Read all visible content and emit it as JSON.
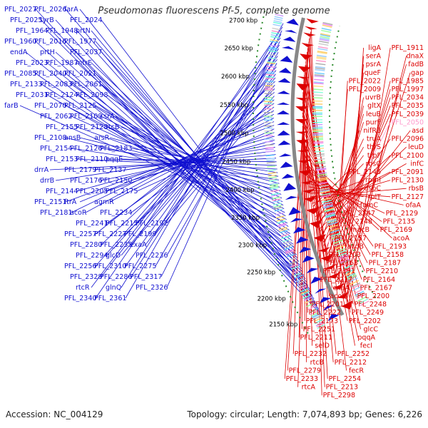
{
  "map": {
    "title": "Pseudomonas fluorescens Pf-5, complete genome",
    "accession_label": "Accession: NC_004129",
    "summary_label": "Topology: circular; Length: 7,074,893 bp; Genes: 6,226"
  },
  "colors": {
    "forward": "#1010d0",
    "reverse": "#dd0000",
    "highlight": "#ff99cc",
    "backbone": "#888888",
    "tick_dots": "#2a8a2a",
    "tick_label": "#000000"
  },
  "kbp_ticks": [
    "2150 kbp",
    "2200 kbp",
    "2250 kbp",
    "2300 kbp",
    "2350 kbp",
    "2400 kbp",
    "2450 kbp",
    "2500 kbp",
    "2550 kbp",
    "2600 kbp",
    "2650 kbp",
    "2700 kbp"
  ],
  "forward_labels": [
    "PFL_2027",
    "PFL_2026",
    "farA",
    "PFL_2025",
    "tyrB",
    "PFL_2024",
    "PFL_1964",
    "PFL_1948",
    "prtN",
    "PFL_1960",
    "PFL_2016",
    "PFL_1977",
    "endA",
    "prtH",
    "PFL_2037",
    "PFL_2023",
    "PFL_1987",
    "mtrE",
    "PFL_2085",
    "PFL_2040",
    "PFL_2021",
    "PFL_2133",
    "PFL_2083",
    "PFL_2061",
    "PFL_2031",
    "PFL_2124",
    "PFL_2098",
    "farB",
    "PFL_2070",
    "PFL_2125",
    "PFL_2062",
    "PFL_2109",
    "csrA",
    "PFL_2155",
    "PFL_2128",
    "rtcB",
    "PFL_2108",
    "ansB",
    "arsR",
    "PFL_2154",
    "PFL_2126",
    "PFL_2183",
    "PFL_2153",
    "PFL_2110",
    "pqqE",
    "drrA",
    "PFL_2179",
    "PFL_2137",
    "drrB",
    "PFL_2176",
    "PFL_2150",
    "PFL_2144",
    "PFL_2205",
    "PFL_2175",
    "PFL_2151",
    "ftrA",
    "agmR",
    "PFL_2181",
    "acoR",
    "PFL_2234",
    "PFL_2241",
    "PFL_2215",
    "PFL_2192",
    "PFL_2257",
    "PFL_2227",
    "PFL_2199",
    "PFL_2280",
    "PFL_2235",
    "exaA",
    "PFL_2294",
    "glcD",
    "PFL_2236",
    "PFL_2256",
    "PFL_2310",
    "PFL_2275",
    "PFL_2328",
    "PFL_2286",
    "PFL_2317",
    "rtcR",
    "glnQ",
    "PFL_2326",
    "PFL_2340",
    "PFL_2361"
  ],
  "reverse_labels": [
    "PFL_1911",
    "ligA",
    "dnaX",
    "serA",
    "fadB",
    "psrA",
    "gap",
    "queF",
    "PFL_1985",
    "PFL_2022",
    "PFL_1997",
    "PFL_2009",
    "PFL_2034",
    "uvrB",
    "PFL_2035",
    "gltX",
    "PFL_2039",
    "leuB",
    "PFL_2050",
    "purF",
    "asd",
    "nifR3",
    "PFL_2096",
    "truA",
    "leuD",
    "thrS",
    "PFL_2100",
    "trpF",
    "infC",
    "rbsC",
    "PFL_2091",
    "PFL_2146",
    "PFL_2130",
    "rpmI",
    "rbsB",
    "aspC",
    "PFL_2127",
    "rplT",
    "ofaA",
    "fumC",
    "PFL_2129",
    "PFL_2147",
    "PFL_2135",
    "PFL_2148",
    "PFL_2169",
    "macB",
    "acoA",
    "PFL_2157",
    "PFL_2193",
    "acoB",
    "PFL_2158",
    "PFL_2203",
    "PFL_2187",
    "PFL_2163",
    "PFL_2210",
    "PFL_2191",
    "PFL_2164",
    "PFL_2217",
    "PFL_2167",
    "exaA",
    "PFL_2200",
    "acoC",
    "PFL_2248",
    "PFL_2201",
    "PFL_2249",
    "PFL_2222",
    "PFL_2202",
    "PFL_2173",
    "glcC",
    "PFL_2251",
    "pqqA",
    "PFL_2211",
    "fecI",
    "selD",
    "PFL_2252",
    "PFL_2232",
    "PFL_2212",
    "rtcB",
    "fecR",
    "PFL_2279",
    "PFL_2254",
    "PFL_2233",
    "PFL_2213",
    "rtcA",
    "PFL_2298"
  ],
  "highlight_label": "PFL_2050"
}
